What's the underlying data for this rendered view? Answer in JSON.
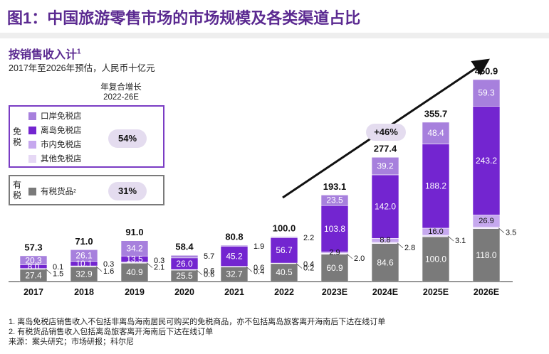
{
  "page": {
    "title": "图1：中国旅游零售市场的市场规模及各类渠道占比",
    "subtitle": "按销售收入计",
    "subtitle_sup": "1",
    "subnote": "2017年至2026年预估，人民币十亿元",
    "cagr_header_line1": "年复合增长",
    "cagr_header_line2": "2022-26E",
    "duty_free_label": "免税",
    "taxed_label": "有税",
    "duty_free_cagr": "54%",
    "taxed_cagr": "31%",
    "growth_label": "+46%",
    "footnotes": [
      "1. 离岛免税店销售收入不包括非离岛海南居民可购买的免税商品，亦不包括离岛旅客离开海南后下达在线订单",
      "2. 有税货品销售收入包括离岛旅客离开海南后下达在线订单",
      "来源：案头研究；市场研报；科尔尼"
    ]
  },
  "legend": [
    {
      "label": "口岸免税店",
      "color": "#a780dd"
    },
    {
      "label": "离岛免税店",
      "color": "#7325d0"
    },
    {
      "label": "市内免税店",
      "color": "#c6a8ee"
    },
    {
      "label": "其他免税店",
      "color": "#e6d8f5"
    }
  ],
  "legend_taxed": {
    "label": "有税货品",
    "sup": "2",
    "color": "#7a7a7a"
  },
  "chart_data": {
    "type": "bar",
    "stacked": true,
    "title": "按销售收入计",
    "ylabel": "人民币十亿元",
    "categories": [
      "2017",
      "2018",
      "2019",
      "2020",
      "2021",
      "2022",
      "2023E",
      "2024E",
      "2025E",
      "2026E"
    ],
    "series": [
      {
        "name": "有税货品",
        "color": "#7a7a7a",
        "values": [
          27.4,
          32.9,
          40.9,
          25.5,
          32.7,
          40.5,
          60.9,
          84.6,
          100.0,
          118.0
        ],
        "labels": [
          "27.4",
          "32.9",
          "40.9",
          "25.5",
          "32.7",
          "40.5",
          "60.9",
          "84.6",
          "100.0",
          "118.0"
        ]
      },
      {
        "name": "其他免税店",
        "color": "#e6d8f5",
        "values": [
          1.5,
          1.6,
          2.1,
          0.6,
          0.4,
          0.2,
          2.0,
          2.8,
          3.1,
          3.5
        ],
        "labels": [
          "1.5",
          "1.6",
          "2.1",
          "0.6",
          "0.4",
          "0.2",
          "2.0",
          "2.8",
          "3.1",
          "3.5"
        ]
      },
      {
        "name": "市内免税店",
        "color": "#c6a8ee",
        "values": [
          0.1,
          0.3,
          0.3,
          0.6,
          0.6,
          0.4,
          2.9,
          8.8,
          16.0,
          26.9
        ],
        "labels": [
          "0.1",
          "0.3",
          "0.3",
          "0.6",
          "0.6",
          "0.4",
          "2.9",
          "8.8",
          "16.0",
          "26.9"
        ]
      },
      {
        "name": "离岛免税店",
        "color": "#7325d0",
        "values": [
          8.0,
          10.1,
          13.5,
          26.0,
          45.2,
          56.7,
          103.8,
          142.0,
          188.2,
          243.2
        ],
        "labels": [
          "8.0",
          "10.1",
          "13.5",
          "26.0",
          "45.2",
          "56.7",
          "103.8",
          "142.0",
          "188.2",
          "243.2"
        ]
      },
      {
        "name": "口岸免税店",
        "color": "#a780dd",
        "values": [
          20.3,
          26.1,
          34.2,
          5.7,
          1.9,
          2.2,
          23.5,
          39.2,
          48.4,
          59.3
        ],
        "labels": [
          "20.3",
          "26.1",
          "34.2",
          "5.7",
          "1.9",
          "2.2",
          "23.5",
          "39.2",
          "48.4",
          "59.3"
        ]
      }
    ],
    "totals": [
      57.3,
      71.0,
      91.0,
      58.4,
      80.8,
      100.0,
      193.1,
      277.4,
      355.7,
      450.9
    ],
    "total_labels": [
      "57.3",
      "71.0",
      "91.0",
      "58.4",
      "80.8",
      "100.0",
      "193.1",
      "277.4",
      "355.7",
      "450.9"
    ],
    "cagr_2022_26E": {
      "duty_free": "54%",
      "taxed": "31%"
    },
    "growth_annotation": "+46%",
    "ylim": [
      0,
      460
    ],
    "grid": false,
    "legend_position": "top-left"
  }
}
